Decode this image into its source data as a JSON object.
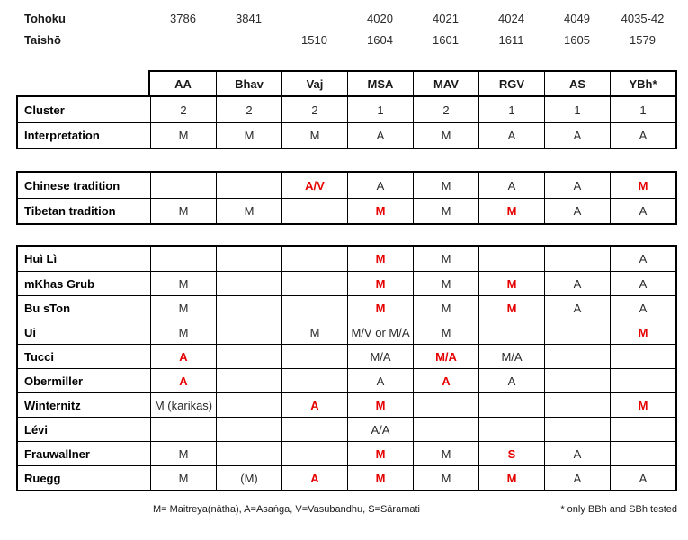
{
  "palette": {
    "red": "#e60000",
    "text": "#1a1a1a",
    "border": "#000000"
  },
  "columns": [
    "AA",
    "Bhav",
    "Vaj",
    "MSA",
    "MAV",
    "RGV",
    "AS",
    "YBh*"
  ],
  "catalog_rows": [
    {
      "label": "Tohoku",
      "cells": [
        "3786",
        "3841",
        "",
        "4020",
        "4021",
        "4024",
        "4049",
        "4035-42"
      ]
    },
    {
      "label": "Taishō",
      "cells": [
        "",
        "",
        "1510",
        "1604",
        "1601",
        "1611",
        "1605",
        "1579"
      ]
    }
  ],
  "cluster_table": [
    {
      "label": "Cluster",
      "cells": [
        "2",
        "2",
        "2",
        "1",
        "2",
        "1",
        "1",
        "1"
      ],
      "red": []
    },
    {
      "label": "Interpretation",
      "cells": [
        "M",
        "M",
        "M",
        "A",
        "M",
        "A",
        "A",
        "A"
      ],
      "red": []
    }
  ],
  "tradition_table": [
    {
      "label": "Chinese tradition",
      "cells": [
        "",
        "",
        "A/V",
        "A",
        "M",
        "A",
        "A",
        "M"
      ],
      "red": [
        2,
        7
      ]
    },
    {
      "label": "Tibetan tradition",
      "cells": [
        "M",
        "M",
        "",
        "M",
        "M",
        "M",
        "A",
        "A"
      ],
      "red": [
        3,
        5
      ]
    }
  ],
  "scholar_table": [
    {
      "label": "Huì Lì",
      "cells": [
        "",
        "",
        "",
        "M",
        "M",
        "",
        "",
        "A"
      ],
      "red": [
        3
      ]
    },
    {
      "label": "mKhas Grub",
      "cells": [
        "M",
        "",
        "",
        "M",
        "M",
        "M",
        "A",
        "A"
      ],
      "red": [
        3,
        5
      ]
    },
    {
      "label": "Bu sTon",
      "cells": [
        "M",
        "",
        "",
        "M",
        "M",
        "M",
        "A",
        "A"
      ],
      "red": [
        3,
        5
      ]
    },
    {
      "label": "Ui",
      "cells": [
        "M",
        "",
        "M",
        "M/V or M/A",
        "M",
        "",
        "",
        "M"
      ],
      "red": [
        7
      ]
    },
    {
      "label": "Tucci",
      "cells": [
        "A",
        "",
        "",
        "M/A",
        "M/A",
        "M/A",
        "",
        ""
      ],
      "red": [
        0,
        4
      ]
    },
    {
      "label": "Obermiller",
      "cells": [
        "A",
        "",
        "",
        "A",
        "A",
        "A",
        "",
        ""
      ],
      "red": [
        0,
        4
      ]
    },
    {
      "label": "Winternitz",
      "cells": [
        "M (karikas)",
        "",
        "A",
        "M",
        "",
        "",
        "",
        "M"
      ],
      "red": [
        2,
        3,
        7
      ]
    },
    {
      "label": "Lévi",
      "cells": [
        "",
        "",
        "",
        "A/A",
        "",
        "",
        "",
        ""
      ],
      "red": []
    },
    {
      "label": "Frauwallner",
      "cells": [
        "M",
        "",
        "",
        "M",
        "M",
        "S",
        "A",
        ""
      ],
      "red": [
        3,
        5
      ]
    },
    {
      "label": "Ruegg",
      "cells": [
        "M",
        "(M)",
        "A",
        "M",
        "M",
        "M",
        "A",
        "A"
      ],
      "red": [
        2,
        3,
        5
      ]
    }
  ],
  "footnotes": {
    "legend": "M= Maitreya(nātha), A=Asaṅga, V=Vasubandhu, S=Sāramati",
    "asterisk": "* only BBh and SBh tested"
  }
}
